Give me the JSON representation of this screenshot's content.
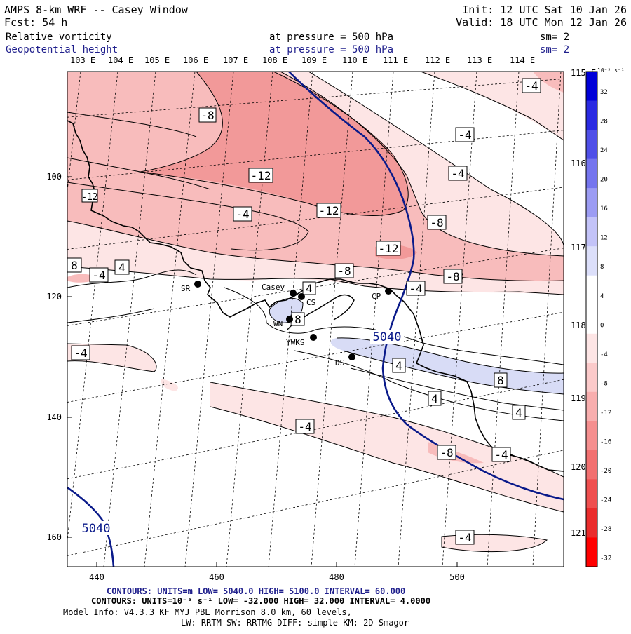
{
  "header": {
    "title": "AMPS 8-km WRF -- Casey Window",
    "forecast": "Fcst:    54 h",
    "init": "Init: 12 UTC Sat 10 Jan 26",
    "valid": "Valid: 18 UTC Mon 12 Jan 26",
    "field1": {
      "name": "Relative vorticity",
      "level": "at pressure =  500 hPa",
      "smooth": "sm= 2"
    },
    "field2": {
      "name": "Geopotential height",
      "level": "at pressure =  500 hPa",
      "smooth": "sm= 2"
    }
  },
  "colors": {
    "text_blue": "#1f1f8c",
    "height_contour": "#0a1a8a",
    "neg_fill_light": "#fde5e5",
    "neg_fill_mid": "#f8bcbc",
    "neg_fill_dark": "#f29999",
    "pos_fill": "#d8dcf6",
    "coast": "#000000"
  },
  "map": {
    "top_lon_labels": [
      "103 E",
      "104 E",
      "105 E",
      "106 E",
      "107 E",
      "108 E",
      "109 E",
      "110 E",
      "111 E",
      "112 E",
      "113 E",
      "114 E"
    ],
    "right_lon_labels": [
      "115 E",
      "116 E",
      "117 E",
      "118 E",
      "119 E",
      "120 E",
      "121 E"
    ],
    "y_axis_ticks": [
      100,
      120,
      140,
      160
    ],
    "x_axis_ticks": [
      440,
      460,
      480,
      500
    ],
    "stations": [
      {
        "id": "SR",
        "label": "SR"
      },
      {
        "id": "Casey",
        "label": "Casey"
      },
      {
        "id": "CS",
        "label": "CS"
      },
      {
        "id": "WN",
        "label": "WN"
      },
      {
        "id": "CP",
        "label": "CP"
      },
      {
        "id": "YWKS",
        "label": "YWKS"
      },
      {
        "id": "DS",
        "label": "DS"
      }
    ],
    "vorticity_labels": [
      "-8",
      "-12",
      "-4",
      "-4",
      "-4",
      "-12",
      "-12",
      "-8",
      "-4",
      "-12",
      "-8",
      "-8",
      "8",
      "-4",
      "4",
      "-4",
      "4",
      "8",
      "-4",
      "4",
      "8",
      "4",
      "-4",
      "4",
      "-8",
      "-4",
      "-4",
      "-4"
    ],
    "height_labels": [
      "5040",
      "5040"
    ]
  },
  "colorbar": {
    "unit": "10⁻⁵ s⁻¹",
    "tick_labels": [
      "32",
      "28",
      "24",
      "20",
      "16",
      "12",
      "8",
      "4",
      "0",
      "-4",
      "-8",
      "-12",
      "-16",
      "-20",
      "-24",
      "-28",
      "-32"
    ],
    "colors": [
      "#0000d8",
      "#2a2ae2",
      "#4f4fe8",
      "#7575ee",
      "#9c9cf3",
      "#c3c3f8",
      "#dcdffa",
      "#ffffff",
      "#ffffff",
      "#fde5e5",
      "#fbcaca",
      "#f8aeae",
      "#f58f8f",
      "#f27070",
      "#ef4f4f",
      "#ea2c2c",
      "#ff0000"
    ]
  },
  "footer": {
    "line1": "CONTOURS: UNITS=m  LOW=  5040.0      HIGH=  5100.0      INTERVAL=  60.000",
    "line2": "CONTOURS: UNITS=10⁻⁵ s⁻¹  LOW= -32.000      HIGH=  32.000      INTERVAL=  4.0000",
    "line3": "Model Info: V4.3.3    KF       MYJ PBL  Morrison              8.0 km,  60 levels,",
    "line4": "LW: RRTM SW: RRTMG   DIFF: simple KM: 2D Smagor"
  }
}
